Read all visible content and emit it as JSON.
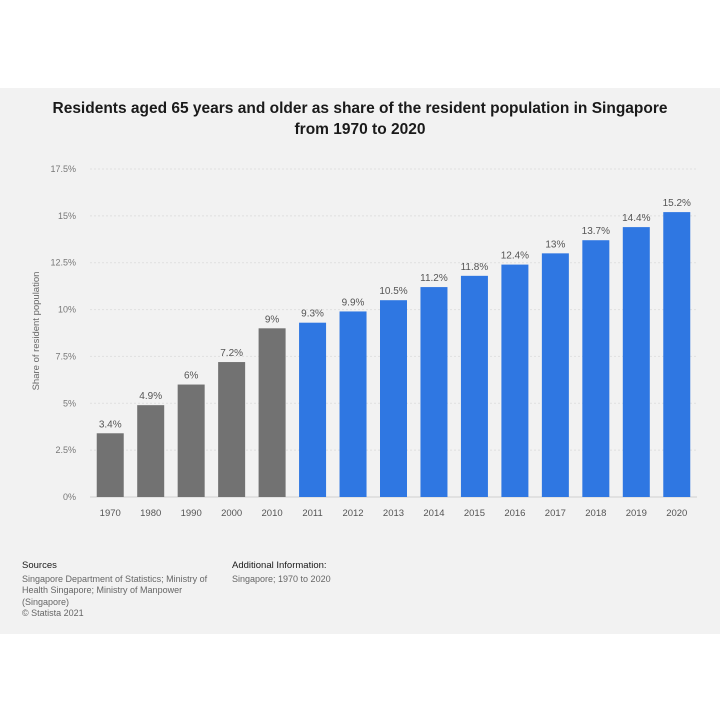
{
  "title_line1": "Residents aged 65 years and older as share of the resident population in Singapore",
  "title_line2": "from 1970 to 2020",
  "chart_data": {
    "type": "bar",
    "categories": [
      "1970",
      "1980",
      "1990",
      "2000",
      "2010",
      "2011",
      "2012",
      "2013",
      "2014",
      "2015",
      "2016",
      "2017",
      "2018",
      "2019",
      "2020"
    ],
    "values": [
      3.4,
      4.9,
      6,
      7.2,
      9,
      9.3,
      9.9,
      10.5,
      11.2,
      11.8,
      12.4,
      13,
      13.7,
      14.4,
      15.2
    ],
    "data_labels": [
      "3.4%",
      "4.9%",
      "6%",
      "7.2%",
      "9%",
      "9.3%",
      "9.9%",
      "10.5%",
      "11.2%",
      "11.8%",
      "12.4%",
      "13%",
      "13.7%",
      "14.4%",
      "15.2%"
    ],
    "bar_colors": [
      "#727272",
      "#727272",
      "#727272",
      "#727272",
      "#727272",
      "#2f77e2",
      "#2f77e2",
      "#2f77e2",
      "#2f77e2",
      "#2f77e2",
      "#2f77e2",
      "#2f77e2",
      "#2f77e2",
      "#2f77e2",
      "#2f77e2"
    ],
    "ylabel": "Share of resident population",
    "xlabel": "",
    "ylim": [
      0,
      17.5
    ],
    "yticks": [
      0,
      2.5,
      5,
      7.5,
      10,
      12.5,
      15,
      17.5
    ],
    "ytick_labels": [
      "0%",
      "2.5%",
      "5%",
      "7.5%",
      "10%",
      "12.5%",
      "15%",
      "17.5%"
    ],
    "grid": true
  },
  "footer": {
    "sources_heading": "Sources",
    "sources_line1": "Singapore Department of Statistics; Ministry of",
    "sources_line2": "Health Singapore; Ministry of Manpower",
    "sources_line3": "(Singapore)",
    "sources_line4": "© Statista 2021",
    "additional_heading": "Additional Information:",
    "additional_line1": "Singapore; 1970 to 2020"
  }
}
